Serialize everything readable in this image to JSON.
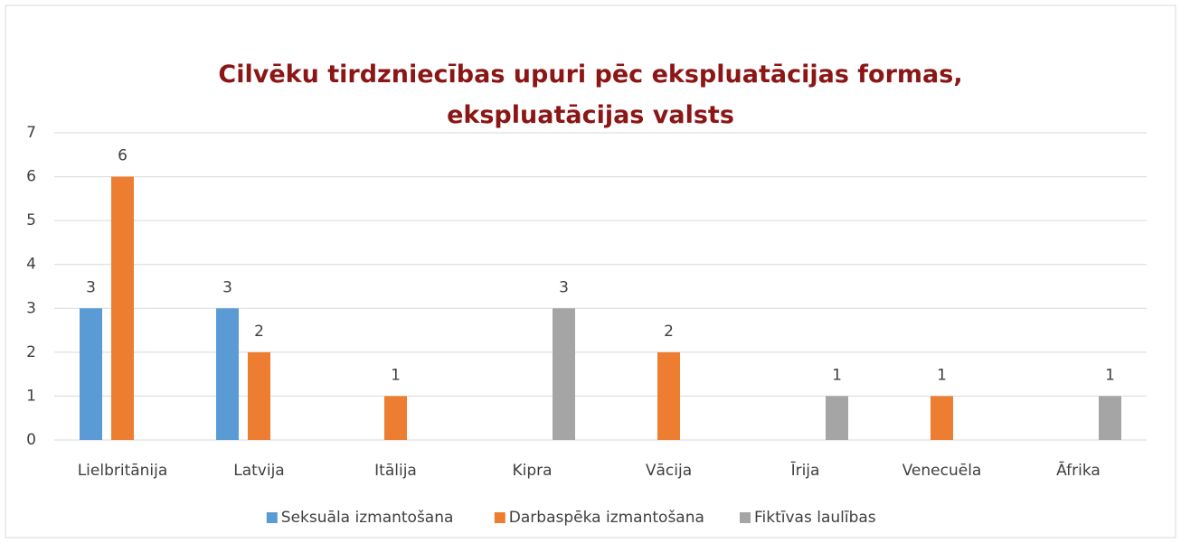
{
  "chart_data": {
    "type": "bar",
    "title": "Cilvēku tirdzniecības upuri pēc ekspluatācijas formas,\nekspluatācijas valsts",
    "categories": [
      "Lielbritānija",
      "Latvija",
      "Itālija",
      "Kipra",
      "Vācija",
      "Īrija",
      "Venecuēla",
      "Āfrika"
    ],
    "series": [
      {
        "name": "Seksuāla izmantošana",
        "color": "#5b9bd5",
        "values": [
          3,
          3,
          null,
          null,
          null,
          null,
          null,
          null
        ]
      },
      {
        "name": "Darbaspēka izmantošana",
        "color": "#ed7d31",
        "values": [
          6,
          2,
          1,
          null,
          2,
          null,
          1,
          null
        ]
      },
      {
        "name": "Fiktīvas laulības",
        "color": "#a5a5a5",
        "values": [
          null,
          null,
          null,
          3,
          null,
          1,
          null,
          1
        ]
      }
    ],
    "ylim": [
      0,
      7
    ],
    "yticks": [
      0,
      1,
      2,
      3,
      4,
      5,
      6,
      7
    ],
    "grid": true,
    "legend": "bottom"
  }
}
